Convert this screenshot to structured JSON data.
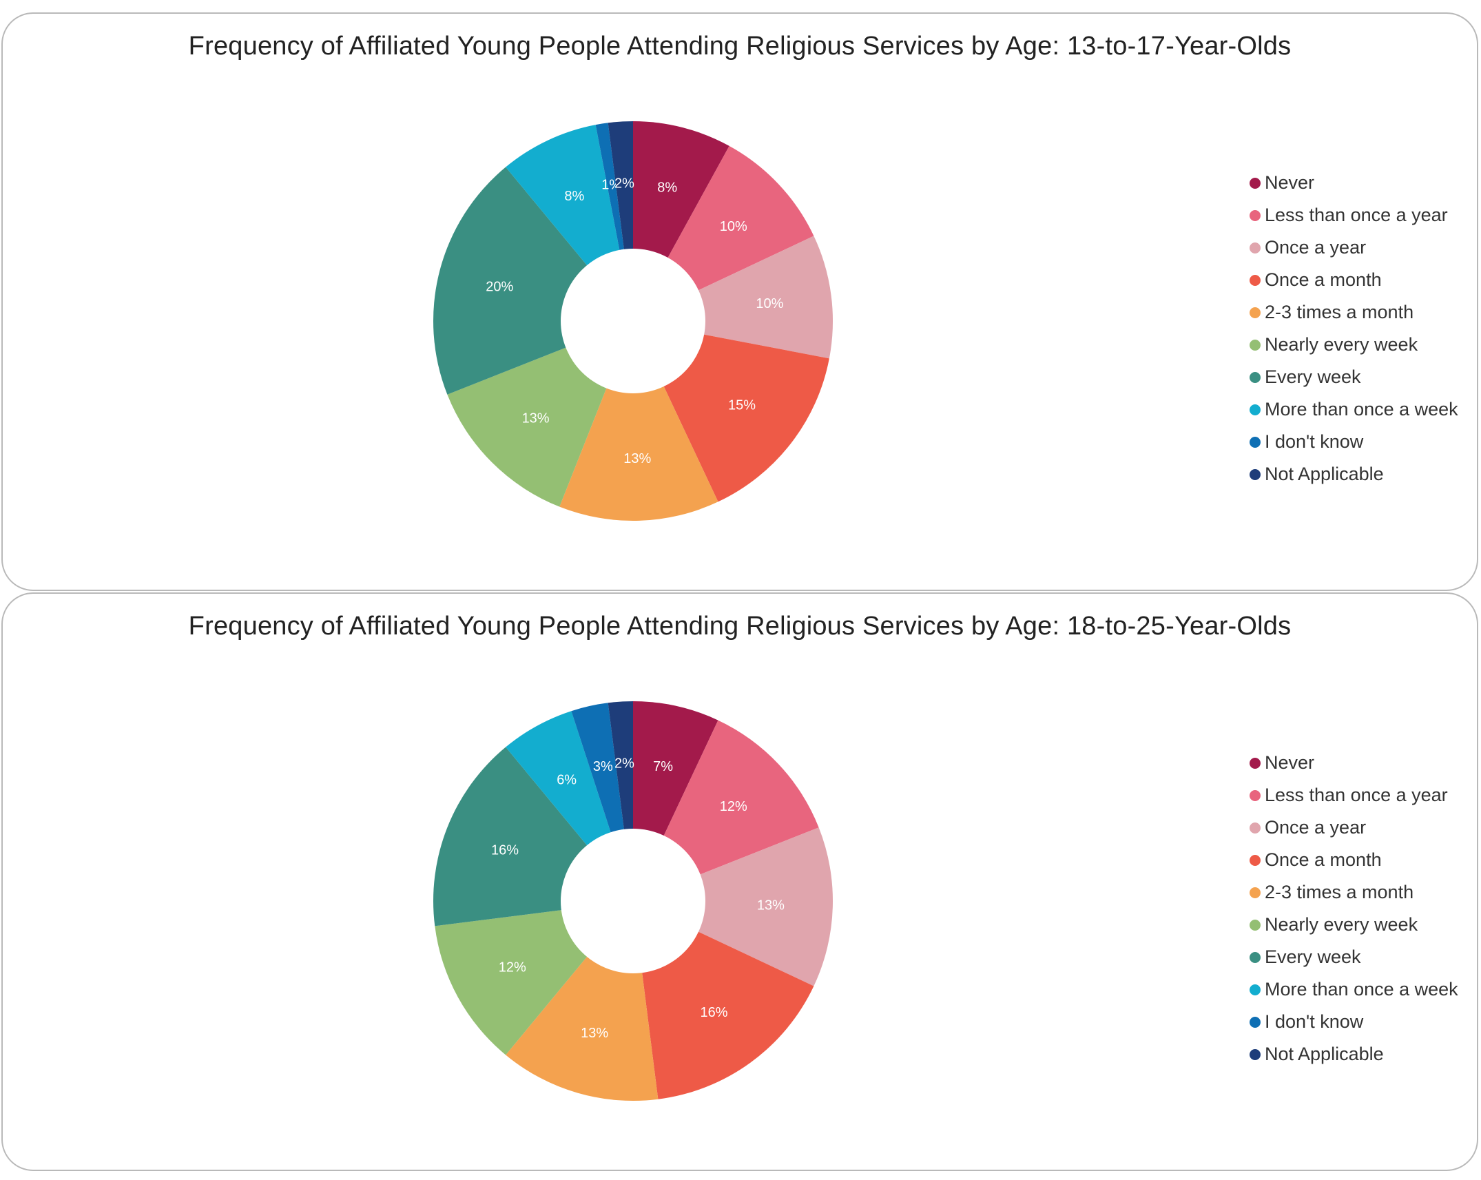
{
  "chart_data": [
    {
      "type": "pie",
      "style": "donut",
      "title": "Frequency of Affiliated Young People Attending Religious Services by Age: 13-to-17-Year-Olds",
      "categories": [
        "Never",
        "Less than once a year",
        "Once a year",
        "Once a month",
        "2-3 times a month",
        "Nearly every week",
        "Every week",
        "More than once a week",
        "I don't know",
        "Not Applicable"
      ],
      "values": [
        8,
        10,
        10,
        15,
        13,
        13,
        20,
        8,
        1,
        2
      ],
      "labels": [
        "8%",
        "10%",
        "10%",
        "15%",
        "13%",
        "13%",
        "20%",
        "8%",
        "1%",
        "2%"
      ],
      "legend_position": "right"
    },
    {
      "type": "pie",
      "style": "donut",
      "title": "Frequency of Affiliated Young People Attending Religious Services by Age: 18-to-25-Year-Olds",
      "categories": [
        "Never",
        "Less than once a year",
        "Once a year",
        "Once a month",
        "2-3 times a month",
        "Nearly every week",
        "Every week",
        "More than once a week",
        "I don't know",
        "Not Applicable"
      ],
      "values": [
        7,
        12,
        13,
        16,
        13,
        12,
        16,
        6,
        3,
        2
      ],
      "labels": [
        "7%",
        "12%",
        "13%",
        "16%",
        "13%",
        "12%",
        "16%",
        "6%",
        "3%",
        "2%"
      ],
      "legend_position": "right"
    }
  ],
  "colors": [
    "#a31a4b",
    "#e8657e",
    "#e0a5ad",
    "#ee5a47",
    "#f4a24f",
    "#94bf73",
    "#3a8f82",
    "#13adcf",
    "#0e6fb4",
    "#1e3d7a"
  ]
}
